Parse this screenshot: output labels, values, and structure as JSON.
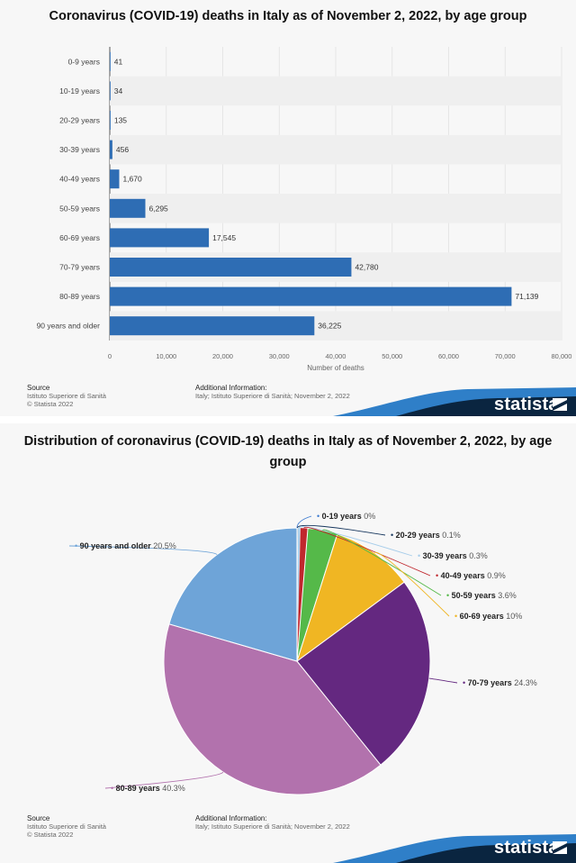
{
  "bar_chart": {
    "title": "Coronavirus (COVID-19) deaths in Italy as of November 2, 2022, by age group",
    "xlabel": "Number of deaths",
    "ticks": [
      "0",
      "10,000",
      "20,000",
      "30,000",
      "40,000",
      "50,000",
      "60,000",
      "70,000",
      "80,000"
    ],
    "bar_labels": [
      "41",
      "34",
      "135",
      "456",
      "1,670",
      "6,295",
      "17,545",
      "42,780",
      "71,139",
      "36,225"
    ],
    "source_header": "Source",
    "source_lines": [
      "Istituto Superiore di Sanità",
      "© Statista 2022"
    ],
    "additional_header": "Additional Information:",
    "additional_text": "Italy; Istituto Superiore di Sanità; November 2, 2022",
    "brand": "statista"
  },
  "pie_chart": {
    "title_line1": "Distribution of coronavirus (COVID-19) deaths in Italy as of November 2, 2022, by age",
    "title_line2": "group",
    "source_header": "Source",
    "source_lines": [
      "Istituto Superiore di Sanità",
      "© Statista 2022"
    ],
    "additional_header": "Additional Information:",
    "additional_text": "Italy; Istituto Superiore di Sanità; November 2, 2022",
    "brand": "statista"
  },
  "chart_data": [
    {
      "type": "bar",
      "orientation": "horizontal",
      "title": "Coronavirus (COVID-19) deaths in Italy as of November 2, 2022, by age group",
      "xlabel": "Number of deaths",
      "ylabel": "",
      "categories": [
        "0-9 years",
        "10-19 years",
        "20-29 years",
        "30-39 years",
        "40-49 years",
        "50-59 years",
        "60-69 years",
        "70-79 years",
        "80-89 years",
        "90 years and older"
      ],
      "values": [
        41,
        34,
        135,
        456,
        1670,
        6295,
        17545,
        42780,
        71139,
        36225
      ],
      "xlim": [
        0,
        80000
      ],
      "grid": true,
      "color": "#2e6db4"
    },
    {
      "type": "pie",
      "title": "Distribution of coronavirus (COVID-19) deaths in Italy as of November 2, 2022, by age group",
      "categories": [
        "0-19 years",
        "20-29 years",
        "30-39 years",
        "40-49 years",
        "50-59 years",
        "60-69 years",
        "70-79 years",
        "80-89 years",
        "90 years and older"
      ],
      "values": [
        0,
        0.1,
        0.3,
        0.9,
        3.6,
        10,
        24.3,
        40.3,
        20.5
      ],
      "value_labels": [
        "0%",
        "0.1%",
        "0.3%",
        "0.9%",
        "3.6%",
        "10%",
        "24.3%",
        "40.3%",
        "20.5%"
      ],
      "colors": [
        "#3d7bd0",
        "#17375e",
        "#a7cdea",
        "#c0272d",
        "#55b949",
        "#f0b623",
        "#642880",
        "#b272ad",
        "#6ea4d8"
      ]
    }
  ]
}
